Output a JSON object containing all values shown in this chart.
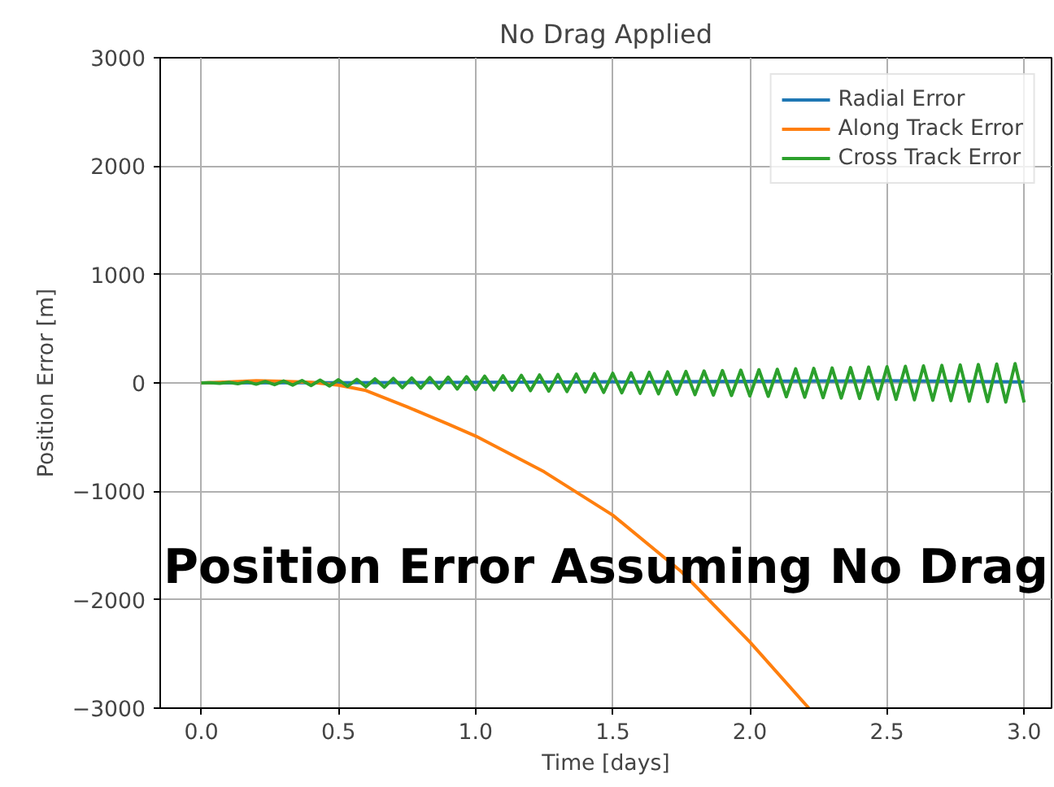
{
  "chart_data": {
    "type": "line",
    "title": "No Drag Applied",
    "xlabel": "Time [days]",
    "ylabel": "Position Error [m]",
    "xlim": [
      -0.15,
      3.1
    ],
    "ylim": [
      -3000,
      3000
    ],
    "xticks": [
      {
        "value": 0,
        "label": "0.0"
      },
      0.5,
      {
        "value": 1,
        "label": "1.0"
      },
      1.5,
      {
        "value": 2,
        "label": "2.0"
      },
      2.5,
      {
        "value": 3,
        "label": "3.0"
      }
    ],
    "yticks": [
      {
        "value": -3000,
        "label": "−3000"
      },
      {
        "value": -2000,
        "label": "−2000"
      },
      {
        "value": -1000,
        "label": "−1000"
      },
      0,
      1000,
      2000,
      3000
    ],
    "grid": true,
    "legend": "top right",
    "annotations": [
      "Position Error Assuming No Drag"
    ],
    "series": [
      {
        "name": "Radial Error",
        "color": "#1f77b4",
        "x": [
          0,
          1,
          2,
          2.5,
          3
        ],
        "values": [
          0,
          5,
          15,
          20,
          10
        ]
      },
      {
        "name": "Along Track Error",
        "color": "#ff7f0e",
        "x": [
          0,
          0.1,
          0.2,
          0.3,
          0.4,
          0.5,
          0.6,
          0.75,
          0.9,
          1.0,
          1.25,
          1.5,
          1.75,
          2.0,
          2.215
        ],
        "values": [
          0,
          10,
          20,
          15,
          5,
          -20,
          -70,
          -220,
          -380,
          -490,
          -820,
          -1220,
          -1740,
          -2390,
          -3000
        ]
      },
      {
        "name": "Cross Track Error",
        "color": "#2ca02c",
        "x": [
          0,
          0.033,
          0.067,
          0.1,
          0.133,
          0.167,
          0.2,
          0.233,
          0.267,
          0.3,
          0.333,
          0.367,
          0.4,
          0.433,
          0.467,
          0.5,
          0.533,
          0.567,
          0.6,
          0.633,
          0.667,
          0.7,
          0.733,
          0.767,
          0.8,
          0.833,
          0.867,
          0.9,
          0.933,
          0.967,
          1.0,
          1.033,
          1.067,
          1.1,
          1.133,
          1.167,
          1.2,
          1.233,
          1.267,
          1.3,
          1.333,
          1.367,
          1.4,
          1.433,
          1.467,
          1.5,
          1.533,
          1.567,
          1.6,
          1.633,
          1.667,
          1.7,
          1.733,
          1.767,
          1.8,
          1.833,
          1.867,
          1.9,
          1.933,
          1.967,
          2.0,
          2.033,
          2.067,
          2.1,
          2.133,
          2.167,
          2.2,
          2.233,
          2.267,
          2.3,
          2.333,
          2.367,
          2.4,
          2.433,
          2.467,
          2.5,
          2.533,
          2.567,
          2.6,
          2.633,
          2.667,
          2.7,
          2.733,
          2.767,
          2.8,
          2.833,
          2.867,
          2.9,
          2.933,
          2.967,
          3.0
        ],
        "values": [
          0,
          2,
          -4,
          6,
          -8,
          10,
          -12,
          14,
          -16,
          18,
          -20,
          22,
          -24,
          26,
          -28,
          30,
          -32,
          34,
          -36,
          38,
          -40,
          42,
          -44,
          46,
          -48,
          50,
          -52,
          54,
          -56,
          58,
          -60,
          62,
          -64,
          66,
          -68,
          70,
          -72,
          74,
          -76,
          78,
          -80,
          82,
          -84,
          86,
          -88,
          90,
          -92,
          94,
          -96,
          98,
          -100,
          102,
          -104,
          106,
          -108,
          110,
          -112,
          114,
          -116,
          118,
          -120,
          122,
          -124,
          126,
          -128,
          130,
          -132,
          134,
          -136,
          138,
          -140,
          142,
          -144,
          146,
          -148,
          150,
          -152,
          154,
          -156,
          158,
          -160,
          162,
          -164,
          166,
          -168,
          170,
          -172,
          174,
          -176,
          178,
          -180
        ]
      }
    ]
  }
}
